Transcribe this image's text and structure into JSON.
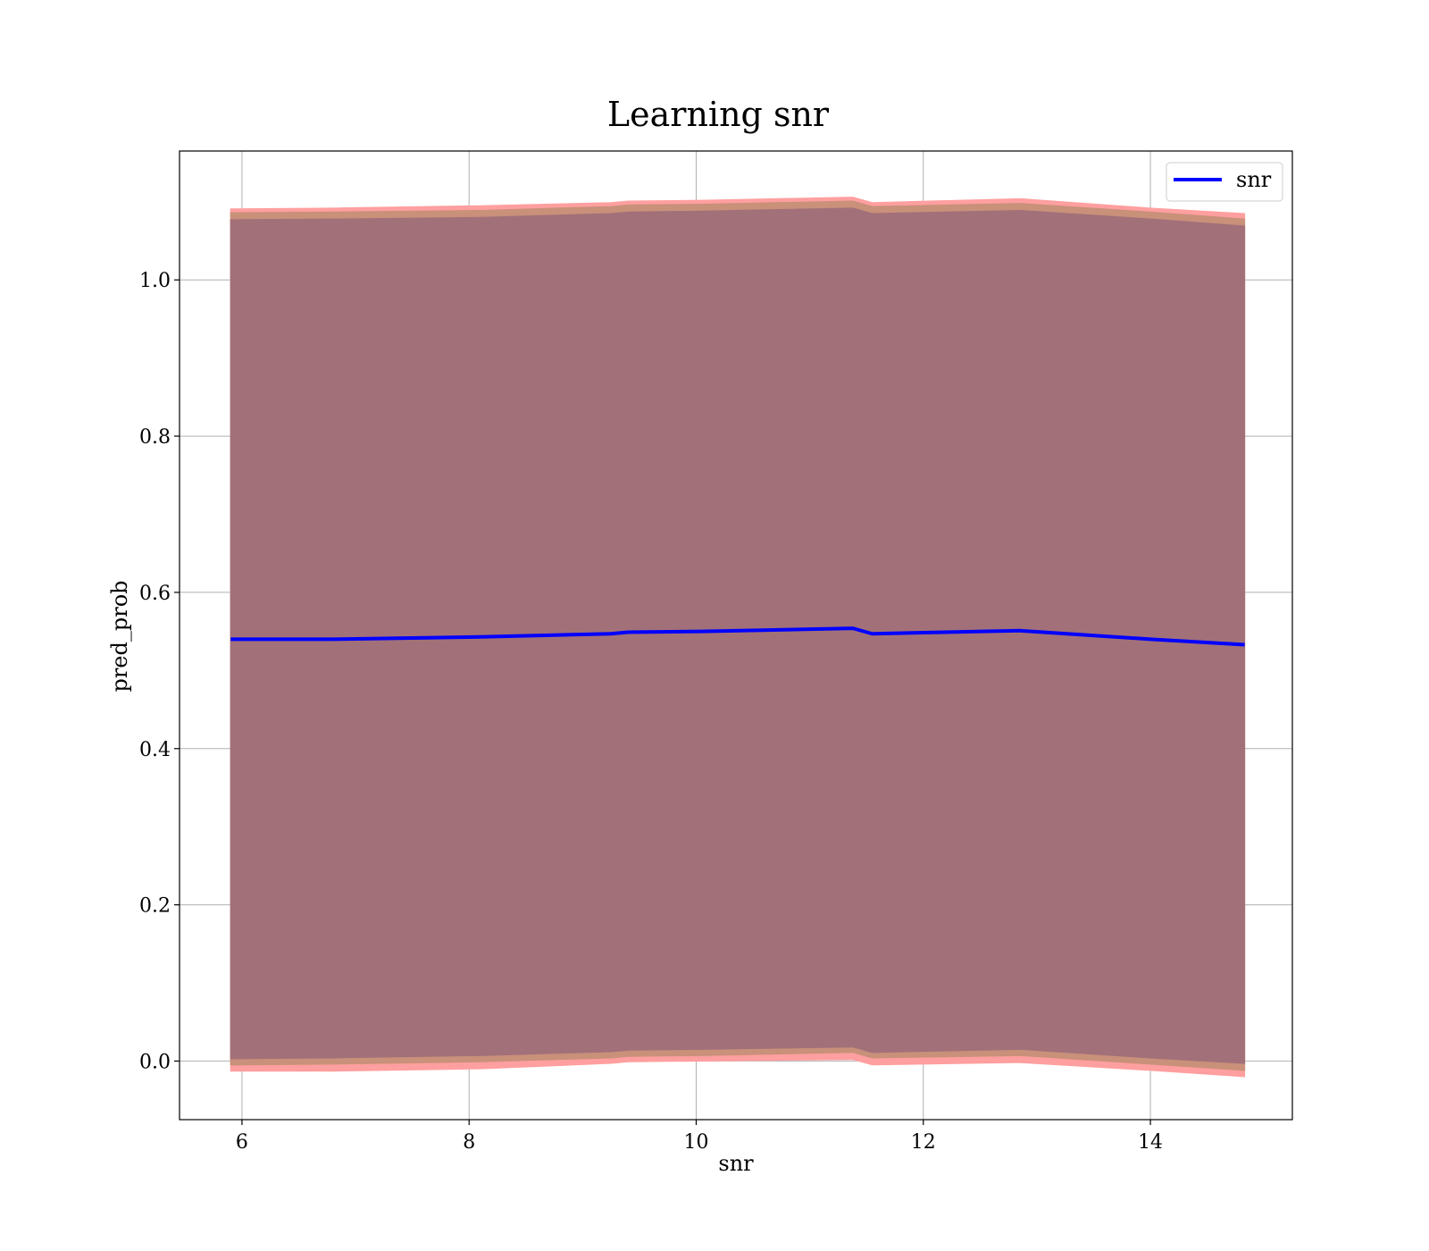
{
  "chart_data": {
    "type": "line",
    "title": "Learning snr",
    "xlabel": "snr",
    "ylabel": "pred_prob",
    "xlim": [
      5.45,
      15.25
    ],
    "ylim": [
      -0.075,
      1.165
    ],
    "xticks": [
      6,
      8,
      10,
      12,
      14
    ],
    "yticks": [
      0.0,
      0.2,
      0.4,
      0.6,
      0.8,
      1.0
    ],
    "ytick_labels": [
      "0.0",
      "0.2",
      "0.4",
      "0.6",
      "0.8",
      "1.0"
    ],
    "grid": true,
    "legend_position": "top-right",
    "x": [
      5.9,
      6.8,
      8.1,
      9.25,
      9.4,
      10.05,
      11.38,
      11.55,
      12.85,
      14.0,
      14.83
    ],
    "series": [
      {
        "name": "snr",
        "color": "#0000ff",
        "values": [
          0.54,
          0.54,
          0.543,
          0.547,
          0.549,
          0.55,
          0.554,
          0.547,
          0.551,
          0.54,
          0.533
        ]
      }
    ],
    "bands": [
      {
        "color": "#ff9f9f",
        "lower": [
          -0.013,
          -0.013,
          -0.01,
          -0.003,
          -0.001,
          0.0,
          0.002,
          -0.005,
          -0.002,
          -0.012,
          -0.02
        ],
        "upper": [
          1.091,
          1.092,
          1.095,
          1.099,
          1.101,
          1.102,
          1.106,
          1.099,
          1.104,
          1.092,
          1.085
        ]
      },
      {
        "color": "#c9907a",
        "lower": [
          -0.005,
          -0.004,
          -0.001,
          0.004,
          0.006,
          0.007,
          0.011,
          0.004,
          0.007,
          -0.004,
          -0.012
        ],
        "upper": [
          1.086,
          1.087,
          1.089,
          1.094,
          1.096,
          1.097,
          1.101,
          1.094,
          1.098,
          1.087,
          1.078
        ]
      },
      {
        "color": "#a27079",
        "lower": [
          0.003,
          0.004,
          0.007,
          0.012,
          0.014,
          0.015,
          0.018,
          0.011,
          0.015,
          0.004,
          -0.003
        ],
        "upper": [
          1.077,
          1.078,
          1.08,
          1.085,
          1.087,
          1.088,
          1.092,
          1.085,
          1.089,
          1.078,
          1.069
        ]
      }
    ]
  }
}
